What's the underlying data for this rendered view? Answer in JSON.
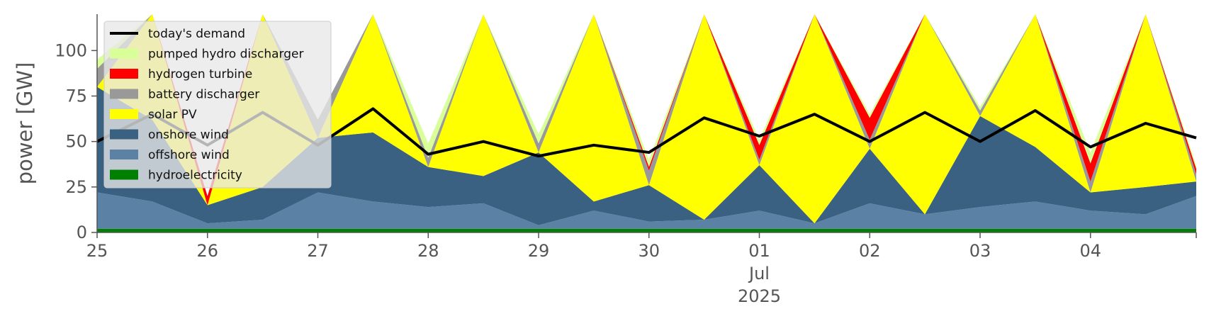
{
  "chart_data": {
    "type": "area",
    "title": "",
    "xlabel": "",
    "ylabel": "power [GW]",
    "ylim": [
      0,
      120
    ],
    "yticks": [
      0,
      25,
      50,
      75,
      100
    ],
    "xlim": [
      "2025-06-25T00:00",
      "2025-07-04T23:00"
    ],
    "x_ticks": [
      {
        "x": "2025-06-25",
        "label": "25"
      },
      {
        "x": "2025-06-26",
        "label": "26"
      },
      {
        "x": "2025-06-27",
        "label": "27"
      },
      {
        "x": "2025-06-28",
        "label": "28"
      },
      {
        "x": "2025-06-29",
        "label": "29"
      },
      {
        "x": "2025-06-30",
        "label": "30"
      },
      {
        "x": "2025-07-01",
        "label": "01",
        "sublabels": [
          "Jul",
          "2025"
        ]
      },
      {
        "x": "2025-07-02",
        "label": "02"
      },
      {
        "x": "2025-07-03",
        "label": "03"
      },
      {
        "x": "2025-07-04",
        "label": "04"
      }
    ],
    "grid": false,
    "legend_position": "top-left",
    "x": [
      "2025-06-25",
      "2025-06-25T12:00",
      "2025-06-26",
      "2025-06-26T12:00",
      "2025-06-27",
      "2025-06-27T12:00",
      "2025-06-28",
      "2025-06-28T12:00",
      "2025-06-29",
      "2025-06-29T12:00",
      "2025-06-30",
      "2025-06-30T12:00",
      "2025-07-01",
      "2025-07-01T12:00",
      "2025-07-02",
      "2025-07-02T12:00",
      "2025-07-03",
      "2025-07-03T12:00",
      "2025-07-04",
      "2025-07-04T12:00",
      "2025-07-04T23:00"
    ],
    "series": [
      {
        "name": "hydroelectricity",
        "color": "#008000",
        "values": [
          2,
          2,
          2,
          2,
          2,
          2,
          2,
          2,
          2,
          2,
          2,
          2,
          2,
          2,
          2,
          2,
          2,
          2,
          2,
          2,
          2
        ]
      },
      {
        "name": "offshore wind",
        "color": "#5b81a5",
        "values": [
          20,
          15,
          3,
          5,
          20,
          15,
          12,
          14,
          2,
          10,
          4,
          5,
          10,
          3,
          14,
          8,
          12,
          15,
          10,
          8,
          18
        ]
      },
      {
        "name": "onshore wind",
        "color": "#3b6182",
        "values": [
          58,
          45,
          10,
          18,
          30,
          38,
          22,
          15,
          40,
          5,
          20,
          0,
          25,
          0,
          30,
          0,
          50,
          30,
          10,
          15,
          8
        ]
      },
      {
        "name": "solar PV",
        "color": "#ffff00",
        "values": [
          0,
          60,
          0,
          100,
          0,
          115,
          0,
          110,
          0,
          115,
          0,
          120,
          0,
          120,
          0,
          115,
          0,
          120,
          0,
          120,
          0
        ]
      },
      {
        "name": "battery discharger",
        "color": "#999999",
        "values": [
          10,
          5,
          0,
          3,
          10,
          10,
          5,
          8,
          5,
          0,
          8,
          0,
          3,
          0,
          5,
          0,
          3,
          0,
          6,
          0,
          4
        ]
      },
      {
        "name": "hydrogen turbine",
        "color": "#ff0000",
        "values": [
          0,
          0,
          5,
          0,
          0,
          0,
          0,
          0,
          0,
          0,
          2,
          0,
          8,
          0,
          12,
          0,
          0,
          0,
          10,
          0,
          3
        ]
      },
      {
        "name": "pumped hydro discharger",
        "color": "#d9ff99",
        "values": [
          5,
          3,
          0,
          2,
          0,
          3,
          8,
          4,
          5,
          2,
          4,
          0,
          3,
          0,
          2,
          0,
          2,
          0,
          6,
          0,
          2
        ]
      }
    ],
    "demand": {
      "name": "today's demand",
      "color": "#000000",
      "values": [
        50,
        65,
        48,
        66,
        48,
        68,
        43,
        50,
        42,
        48,
        44,
        63,
        53,
        65,
        50,
        66,
        50,
        67,
        47,
        60,
        52
      ]
    }
  }
}
